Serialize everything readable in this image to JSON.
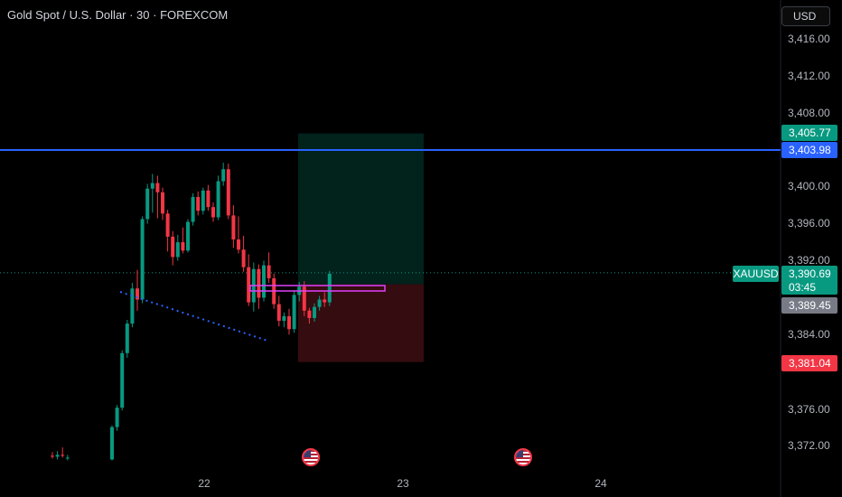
{
  "header": {
    "title": "Gold Spot / U.S. Dollar · 30 · FOREXCOM",
    "currency": "USD"
  },
  "symbol": "XAUUSD",
  "colors": {
    "up": "#089981",
    "down": "#f23645",
    "resistance_line": "#2962ff",
    "trendline": "#2962ff",
    "rectangle": "#e040fb"
  },
  "y_axis": {
    "ticks": [
      "3,416.00",
      "3,412.00",
      "3,408.00",
      "3,400.00",
      "3,396.00",
      "3,392.00",
      "3,384.00",
      "3,376.00",
      "3,372.00"
    ]
  },
  "x_axis": {
    "ticks": [
      "22",
      "23",
      "24"
    ]
  },
  "price_labels": {
    "target": "3,405.77",
    "resistance": "3,403.98",
    "current": "3,390.69",
    "countdown": "03:45",
    "entry": "3,389.45",
    "stop": "3,381.04"
  },
  "chart_data": {
    "type": "candlestick",
    "ylim": [
      3370,
      3419
    ],
    "candles": [
      [
        3370.9,
        3371.3,
        3370.6,
        3370.8
      ],
      [
        3370.8,
        3371.4,
        3370.5,
        3371.0
      ],
      [
        3371.0,
        3371.8,
        3370.7,
        3370.9
      ],
      [
        3370.6,
        3371.0,
        3370.4,
        3370.7
      ],
      [
        3370.5,
        3374.2,
        3370.4,
        3374.0
      ],
      [
        3374.0,
        3376.4,
        3373.6,
        3376.1
      ],
      [
        3376.1,
        3382.3,
        3375.8,
        3382.0
      ],
      [
        3382.0,
        3385.6,
        3381.5,
        3385.2
      ],
      [
        3385.2,
        3389.6,
        3384.8,
        3389.0
      ],
      [
        3389.0,
        3391.0,
        3386.6,
        3387.8
      ],
      [
        3387.8,
        3396.8,
        3387.4,
        3396.5
      ],
      [
        3396.5,
        3400.3,
        3396.0,
        3399.8
      ],
      [
        3399.8,
        3401.4,
        3397.2,
        3400.4
      ],
      [
        3400.4,
        3401.2,
        3396.6,
        3399.4
      ],
      [
        3399.4,
        3399.9,
        3396.4,
        3397.1
      ],
      [
        3397.1,
        3397.5,
        3393.0,
        3394.6
      ],
      [
        3394.6,
        3395.2,
        3391.5,
        3392.4
      ],
      [
        3392.4,
        3394.8,
        3392.0,
        3394.0
      ],
      [
        3394.0,
        3395.6,
        3392.8,
        3393.1
      ],
      [
        3393.1,
        3396.5,
        3392.9,
        3396.2
      ],
      [
        3396.2,
        3399.3,
        3395.8,
        3398.9
      ],
      [
        3398.9,
        3399.5,
        3396.9,
        3397.4
      ],
      [
        3397.4,
        3399.9,
        3397.0,
        3399.6
      ],
      [
        3399.6,
        3400.2,
        3397.4,
        3397.8
      ],
      [
        3397.8,
        3398.3,
        3396.2,
        3396.7
      ],
      [
        3396.7,
        3401.2,
        3396.4,
        3400.6
      ],
      [
        3400.6,
        3402.6,
        3400.1,
        3401.9
      ],
      [
        3401.9,
        3402.5,
        3396.5,
        3396.9
      ],
      [
        3396.9,
        3398.0,
        3393.4,
        3394.3
      ],
      [
        3394.3,
        3396.8,
        3392.8,
        3393.2
      ],
      [
        3393.2,
        3394.7,
        3390.8,
        3391.3
      ],
      [
        3391.3,
        3392.7,
        3387.1,
        3387.5
      ],
      [
        3387.5,
        3391.8,
        3386.5,
        3391.1
      ],
      [
        3391.1,
        3391.6,
        3386.8,
        3388.0
      ],
      [
        3388.0,
        3392.0,
        3387.6,
        3391.5
      ],
      [
        3391.5,
        3392.9,
        3389.6,
        3390.1
      ],
      [
        3390.1,
        3390.6,
        3386.8,
        3387.3
      ],
      [
        3387.3,
        3388.2,
        3384.9,
        3385.5
      ],
      [
        3385.5,
        3386.4,
        3384.8,
        3386.0
      ],
      [
        3386.0,
        3386.8,
        3384.0,
        3384.6
      ],
      [
        3384.6,
        3388.8,
        3384.2,
        3388.3
      ],
      [
        3388.3,
        3389.7,
        3387.6,
        3389.2
      ],
      [
        3389.2,
        3389.8,
        3386.0,
        3386.6
      ],
      [
        3386.6,
        3386.9,
        3385.2,
        3385.8
      ],
      [
        3385.8,
        3387.4,
        3385.4,
        3387.0
      ],
      [
        3387.0,
        3388.2,
        3386.6,
        3387.8
      ],
      [
        3387.8,
        3388.6,
        3387.0,
        3387.5
      ],
      [
        3387.5,
        3390.9,
        3387.1,
        3390.6
      ]
    ],
    "position": {
      "target": 3405.77,
      "entry": 3389.45,
      "stop": 3381.04
    },
    "horizontal_line": 3403.98,
    "last_price": 3390.69
  }
}
